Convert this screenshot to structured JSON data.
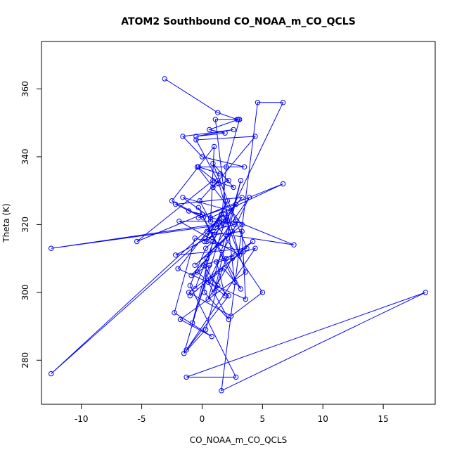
{
  "chart_data": {
    "type": "line",
    "title": "ATOM2 Southbound CO_NOAA_m_CO_QCLS",
    "xlabel": "CO_NOAA_m_CO_QCLS",
    "ylabel": "Theta (K)",
    "xlim": [
      -13.3,
      19.3
    ],
    "ylim": [
      267,
      374
    ],
    "x_ticks": [
      -10,
      -5,
      0,
      5,
      10,
      15
    ],
    "y_ticks": [
      280,
      300,
      320,
      340,
      360
    ],
    "marker": "open-circle",
    "color": "#0000ff",
    "series": [
      {
        "x": [
          -3.1,
          1.3,
          2.9,
          3.0,
          0.6,
          1.9,
          -0.5,
          2.6,
          -1.6,
          0.0,
          3.5,
          -0.3,
          1.5,
          2.2,
          0.9,
          4.4,
          -0.5,
          1.3,
          -0.2,
          0.7,
          1.0,
          -2.5,
          0.1,
          -2.2,
          3.3,
          2.4,
          -1.6,
          0.7,
          6.7,
          -0.3,
          2.8,
          0.4,
          1.8,
          -12.5,
          2.8,
          7.6,
          0.4,
          2.7,
          -1.1,
          0.0,
          -5.4,
          0.9,
          2.6,
          0.9,
          3.7,
          -2.2,
          1.0,
          3.3,
          3.6,
          -2.0,
          1.6,
          0.2,
          2.1,
          1.2,
          5.0,
          2.4,
          -1.1,
          3.4,
          -0.6,
          -2.3,
          0.8,
          -1.8,
          3.6,
          1.8,
          -12.5,
          2.0,
          -0.8,
          0.9,
          0.3,
          -1.0,
          2.8,
          -1.3,
          18.5,
          1.6,
          4.6,
          6.7,
          2.0,
          -1.9,
          3.1,
          1.4,
          -0.4,
          3.3,
          -0.6,
          2.5,
          -0.9,
          0.6,
          -1.5,
          0.3,
          1.3,
          0.1,
          4.4,
          -1.3,
          2.2,
          0.7,
          1.8,
          3.2,
          -0.3,
          2.7,
          1.1,
          3.1,
          2.0,
          1.6,
          -0.6,
          0.4,
          0.2,
          2.2,
          0.5,
          3.9,
          -0.4,
          1.9,
          1.2,
          2.5,
          0.5,
          3.2,
          1.0,
          2.0,
          4.2,
          -1.0
        ],
        "y": [
          363,
          353,
          351,
          351,
          348,
          347,
          346,
          348,
          346,
          340,
          337,
          337,
          335,
          333,
          331,
          346,
          345,
          333,
          327,
          321,
          343,
          327,
          322,
          326,
          328,
          324,
          328,
          322,
          332,
          322,
          326,
          315,
          320,
          313,
          321,
          314,
          318,
          320,
          324,
          323,
          315,
          333,
          331,
          338,
          313,
          311,
          317,
          318,
          298,
          307,
          323,
          315,
          327,
          320,
          300,
          293,
          300,
          312,
          316,
          294,
          287,
          292,
          306,
          323,
          276,
          322,
          291,
          315,
          313,
          302,
          275,
          275,
          300,
          271,
          356,
          356,
          321,
          321,
          311,
          332,
          337,
          320,
          308,
          318,
          305,
          308,
          282,
          289,
          302,
          308,
          313,
          283,
          299,
          304,
          307,
          301,
          325,
          303,
          351,
          351,
          337,
          321,
          301,
          310,
          300,
          292,
          303,
          328,
          306,
          299,
          309,
          310,
          298,
          333,
          300,
          310,
          315,
          299
        ]
      }
    ]
  }
}
